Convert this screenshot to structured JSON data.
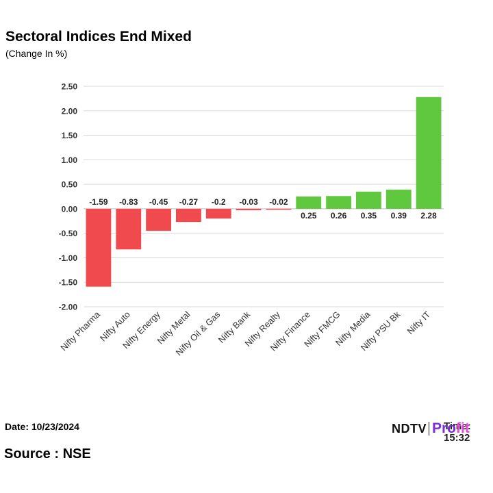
{
  "header": {
    "title": "Sectoral Indices End Mixed",
    "subtitle": "(Change In %)"
  },
  "footer": {
    "date": "Date: 10/23/2024",
    "time": "Time: 15:32",
    "source": "Source : NSE",
    "logo_left": "NDTV",
    "logo_right_a": "Pro",
    "logo_right_b": "fit"
  },
  "colors": {
    "negative": "#f04a4e",
    "positive": "#5fc83e",
    "grid": "#d9d9d9",
    "axis": "#333333"
  },
  "chart_data": {
    "type": "bar",
    "title": "Sectoral Indices End Mixed",
    "subtitle": "(Change In %)",
    "xlabel": "",
    "ylabel": "",
    "categories": [
      "Nifty Pharma",
      "Nifty Auto",
      "Nifty Energy",
      "Nifty Metal",
      "Nifty Oil & Gas",
      "Nifty Bank",
      "Nifty Realty",
      "Nifty Finance",
      "Nifty FMCG",
      "Nifty Media",
      "Nifty PSU Bk",
      "Nifty IT"
    ],
    "values": [
      -1.59,
      -0.83,
      -0.45,
      -0.27,
      -0.2,
      -0.03,
      -0.02,
      0.25,
      0.26,
      0.35,
      0.39,
      2.28
    ],
    "labels": [
      "-1.59",
      "-0.83",
      "-0.45",
      "-0.27",
      "-0.2",
      "-0.03",
      "-0.02",
      "0.25",
      "0.26",
      "0.35",
      "0.39",
      "2.28"
    ],
    "ylim": [
      -2.0,
      2.5
    ],
    "yticks": [
      2.5,
      2.0,
      1.5,
      1.0,
      0.5,
      0.0,
      -0.5,
      -1.0,
      -1.5,
      -2.0
    ],
    "ytick_labels": [
      "2.50",
      "2.00",
      "1.50",
      "1.00",
      "0.50",
      "0.00",
      "-0.50",
      "-1.00",
      "-1.50",
      "-2.00"
    ],
    "grid": true,
    "legend": "none"
  }
}
